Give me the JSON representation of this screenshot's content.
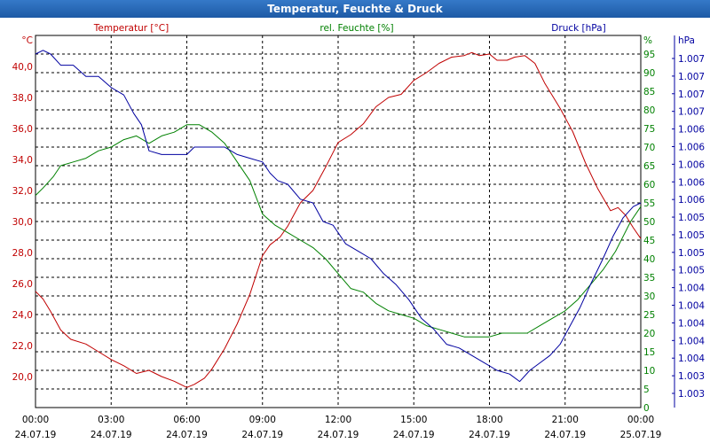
{
  "window": {
    "title": "Temperatur, Feuchte & Druck"
  },
  "chart_data": {
    "type": "line",
    "title": "Temperatur, Feuchte & Druck",
    "x_ticks": [
      {
        "t": 0,
        "time": "00:00",
        "date": "24.07.19"
      },
      {
        "t": 3,
        "time": "03:00",
        "date": "24.07.19"
      },
      {
        "t": 6,
        "time": "06:00",
        "date": "24.07.19"
      },
      {
        "t": 9,
        "time": "09:00",
        "date": "24.07.19"
      },
      {
        "t": 12,
        "time": "12:00",
        "date": "24.07.19"
      },
      {
        "t": 15,
        "time": "15:00",
        "date": "24.07.19"
      },
      {
        "t": 18,
        "time": "18:00",
        "date": "24.07.19"
      },
      {
        "t": 21,
        "time": "21:00",
        "date": "24.07.19"
      },
      {
        "t": 24,
        "time": "00:00",
        "date": "25.07.19"
      }
    ],
    "xlim": [
      0,
      24
    ],
    "axes": {
      "temp": {
        "label": "Temperatur [°C]",
        "unit": "°C",
        "color": "#c00000",
        "range": [
          18.0,
          42.0
        ],
        "ticks": [
          20.0,
          22.0,
          24.0,
          26.0,
          28.0,
          30.0,
          32.0,
          34.0,
          36.0,
          38.0,
          40.0
        ],
        "tick_labels": [
          "20,0",
          "22,0",
          "24,0",
          "26,0",
          "28,0",
          "30,0",
          "32,0",
          "34,0",
          "36,0",
          "38,0",
          "40,0"
        ]
      },
      "hum": {
        "label": "rel. Feuchte [%]",
        "unit": "%",
        "color": "#008000",
        "range": [
          0,
          100
        ],
        "ticks": [
          0,
          5,
          10,
          15,
          20,
          25,
          30,
          35,
          40,
          45,
          50,
          55,
          60,
          65,
          70,
          75,
          80,
          85,
          90,
          95
        ],
        "tick_labels": [
          "0",
          "5",
          "10",
          "15",
          "20",
          "25",
          "30",
          "35",
          "40",
          "45",
          "50",
          "55",
          "60",
          "65",
          "70",
          "75",
          "80",
          "85",
          "90",
          "95"
        ]
      },
      "press": {
        "label": "Druck [hPa]",
        "unit": "hPa",
        "color": "#0000a0",
        "tick_labels": [
          "1.003",
          "1.003",
          "1.004",
          "1.004",
          "1.004",
          "1.004",
          "1.004",
          "1.005",
          "1.005",
          "1.005",
          "1.005",
          "1.006",
          "1.006",
          "1.006",
          "1.006",
          "1.006",
          "1.007",
          "1.007",
          "1.007",
          "1.007"
        ]
      }
    },
    "series": [
      {
        "name": "Temperatur",
        "axis": "temp",
        "color": "#c00000",
        "points": [
          [
            0,
            25.5
          ],
          [
            0.3,
            25.0
          ],
          [
            0.6,
            24.2
          ],
          [
            1,
            23.0
          ],
          [
            1.4,
            22.4
          ],
          [
            2,
            22.1
          ],
          [
            2.5,
            21.6
          ],
          [
            3,
            21.1
          ],
          [
            3.5,
            20.7
          ],
          [
            4,
            20.2
          ],
          [
            4.5,
            20.4
          ],
          [
            5,
            20.0
          ],
          [
            5.5,
            19.7
          ],
          [
            6,
            19.3
          ],
          [
            6.3,
            19.5
          ],
          [
            6.7,
            19.9
          ],
          [
            7,
            20.5
          ],
          [
            7.5,
            21.8
          ],
          [
            8,
            23.4
          ],
          [
            8.5,
            25.3
          ],
          [
            9,
            27.8
          ],
          [
            9.3,
            28.5
          ],
          [
            9.7,
            29.0
          ],
          [
            10,
            29.7
          ],
          [
            10.5,
            31.2
          ],
          [
            11,
            32.0
          ],
          [
            11.5,
            33.5
          ],
          [
            12,
            35.1
          ],
          [
            12.5,
            35.6
          ],
          [
            13,
            36.3
          ],
          [
            13.5,
            37.4
          ],
          [
            14,
            38.0
          ],
          [
            14.5,
            38.2
          ],
          [
            15,
            39.1
          ],
          [
            15.5,
            39.6
          ],
          [
            16,
            40.2
          ],
          [
            16.5,
            40.6
          ],
          [
            17,
            40.7
          ],
          [
            17.3,
            40.9
          ],
          [
            17.6,
            40.7
          ],
          [
            18,
            40.8
          ],
          [
            18.3,
            40.4
          ],
          [
            18.7,
            40.4
          ],
          [
            19,
            40.6
          ],
          [
            19.4,
            40.7
          ],
          [
            19.8,
            40.2
          ],
          [
            20.2,
            38.9
          ],
          [
            20.8,
            37.3
          ],
          [
            21.3,
            35.8
          ],
          [
            21.8,
            33.8
          ],
          [
            22.3,
            32.1
          ],
          [
            22.8,
            30.7
          ],
          [
            23.1,
            30.9
          ],
          [
            23.4,
            30.4
          ],
          [
            23.7,
            29.6
          ],
          [
            24,
            28.9
          ]
        ]
      },
      {
        "name": "rel. Feuchte",
        "axis": "hum",
        "color": "#008000",
        "points": [
          [
            0,
            57
          ],
          [
            0.3,
            59
          ],
          [
            0.7,
            62
          ],
          [
            1,
            65
          ],
          [
            1.5,
            66
          ],
          [
            2,
            67
          ],
          [
            2.5,
            69
          ],
          [
            3,
            70
          ],
          [
            3.5,
            72
          ],
          [
            4,
            73
          ],
          [
            4.5,
            71
          ],
          [
            5,
            73
          ],
          [
            5.5,
            74
          ],
          [
            6,
            76
          ],
          [
            6.5,
            76
          ],
          [
            7,
            74
          ],
          [
            7.5,
            71
          ],
          [
            8,
            66
          ],
          [
            8.5,
            61
          ],
          [
            9,
            52
          ],
          [
            9.5,
            49
          ],
          [
            10,
            47
          ],
          [
            10.5,
            45
          ],
          [
            11,
            43
          ],
          [
            11.5,
            40
          ],
          [
            12,
            36
          ],
          [
            12.5,
            32
          ],
          [
            13,
            31
          ],
          [
            13.5,
            28
          ],
          [
            14,
            26
          ],
          [
            14.5,
            25
          ],
          [
            15,
            24
          ],
          [
            15.5,
            22
          ],
          [
            16,
            21
          ],
          [
            16.5,
            20
          ],
          [
            17,
            19
          ],
          [
            17.5,
            19
          ],
          [
            18,
            19
          ],
          [
            18.5,
            20
          ],
          [
            19,
            20
          ],
          [
            19.5,
            20
          ],
          [
            20,
            22
          ],
          [
            20.5,
            24
          ],
          [
            21,
            26
          ],
          [
            21.5,
            29
          ],
          [
            22,
            33
          ],
          [
            22.5,
            37
          ],
          [
            23,
            42
          ],
          [
            23.3,
            46
          ],
          [
            23.6,
            50
          ],
          [
            24,
            54
          ]
        ]
      },
      {
        "name": "Druck",
        "axis": "press",
        "color": "#0000a0",
        "points": [
          [
            0,
            95
          ],
          [
            0.3,
            96
          ],
          [
            0.6,
            95
          ],
          [
            1,
            92
          ],
          [
            1.5,
            92
          ],
          [
            2,
            89
          ],
          [
            2.5,
            89
          ],
          [
            3,
            86
          ],
          [
            3.5,
            84
          ],
          [
            3.9,
            79
          ],
          [
            4.2,
            76
          ],
          [
            4.5,
            69
          ],
          [
            5,
            68
          ],
          [
            5.5,
            68
          ],
          [
            6,
            68
          ],
          [
            6.3,
            70
          ],
          [
            6.6,
            70
          ],
          [
            7,
            70
          ],
          [
            7.5,
            70
          ],
          [
            8,
            68
          ],
          [
            8.5,
            67
          ],
          [
            9,
            66
          ],
          [
            9.3,
            63
          ],
          [
            9.6,
            61
          ],
          [
            10,
            60
          ],
          [
            10.5,
            56
          ],
          [
            11,
            55
          ],
          [
            11.4,
            50
          ],
          [
            11.8,
            49
          ],
          [
            12.3,
            44
          ],
          [
            12.8,
            42
          ],
          [
            13.3,
            40
          ],
          [
            13.8,
            36
          ],
          [
            14.3,
            33
          ],
          [
            14.8,
            29
          ],
          [
            15.3,
            24
          ],
          [
            15.8,
            21
          ],
          [
            16.3,
            17
          ],
          [
            16.8,
            16
          ],
          [
            17.3,
            14
          ],
          [
            17.8,
            12
          ],
          [
            18.3,
            10
          ],
          [
            18.8,
            9
          ],
          [
            19.2,
            7
          ],
          [
            19.6,
            10
          ],
          [
            20,
            12
          ],
          [
            20.4,
            14
          ],
          [
            20.8,
            17
          ],
          [
            21.2,
            22
          ],
          [
            21.6,
            27
          ],
          [
            22,
            33
          ],
          [
            22.5,
            40
          ],
          [
            22.9,
            46
          ],
          [
            23.3,
            51
          ],
          [
            23.7,
            54
          ],
          [
            24,
            55
          ]
        ]
      }
    ]
  }
}
